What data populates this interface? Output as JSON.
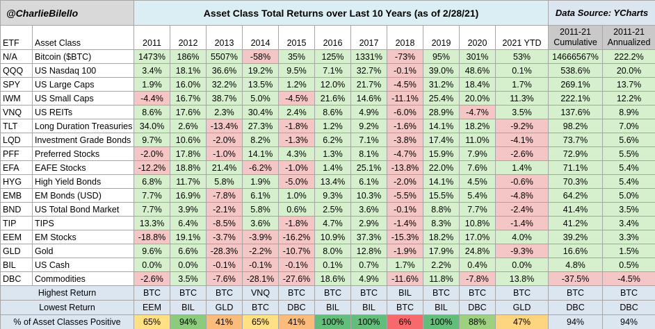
{
  "header": {
    "handle": "@CharlieBilello",
    "title": "Asset Class Total Returns over Last 10 Years (as of 2/28/21)",
    "source": "Data Source: YCharts"
  },
  "table": {
    "columns": [
      "ETF",
      "Asset Class",
      "2011",
      "2012",
      "2013",
      "2014",
      "2015",
      "2016",
      "2017",
      "2018",
      "2019",
      "2020",
      "2021 YTD",
      "2011-21 Cumulative",
      "2011-21 Annualized"
    ],
    "rows": [
      [
        "N/A",
        "Bitcoin ($BTC)",
        "1473%",
        "186%",
        "5507%",
        "-58%",
        "35%",
        "125%",
        "1331%",
        "-73%",
        "95%",
        "301%",
        "53%",
        "14666567%",
        "222.2%"
      ],
      [
        "QQQ",
        "US Nasdaq 100",
        "3.4%",
        "18.1%",
        "36.6%",
        "19.2%",
        "9.5%",
        "7.1%",
        "32.7%",
        "-0.1%",
        "39.0%",
        "48.6%",
        "0.1%",
        "538.6%",
        "20.0%"
      ],
      [
        "SPY",
        "US Large Caps",
        "1.9%",
        "16.0%",
        "32.2%",
        "13.5%",
        "1.2%",
        "12.0%",
        "21.7%",
        "-4.5%",
        "31.2%",
        "18.4%",
        "1.7%",
        "269.1%",
        "13.7%"
      ],
      [
        "IWM",
        "US Small Caps",
        "-4.4%",
        "16.7%",
        "38.7%",
        "5.0%",
        "-4.5%",
        "21.6%",
        "14.6%",
        "-11.1%",
        "25.4%",
        "20.0%",
        "11.3%",
        "222.1%",
        "12.2%"
      ],
      [
        "VNQ",
        "US REITs",
        "8.6%",
        "17.6%",
        "2.3%",
        "30.4%",
        "2.4%",
        "8.6%",
        "4.9%",
        "-6.0%",
        "28.9%",
        "-4.7%",
        "3.5%",
        "137.6%",
        "8.9%"
      ],
      [
        "TLT",
        "Long Duration Treasuries",
        "34.0%",
        "2.6%",
        "-13.4%",
        "27.3%",
        "-1.8%",
        "1.2%",
        "9.2%",
        "-1.6%",
        "14.1%",
        "18.2%",
        "-9.2%",
        "98.2%",
        "7.0%"
      ],
      [
        "LQD",
        "Investment Grade Bonds",
        "9.7%",
        "10.6%",
        "-2.0%",
        "8.2%",
        "-1.3%",
        "6.2%",
        "7.1%",
        "-3.8%",
        "17.4%",
        "11.0%",
        "-4.1%",
        "73.7%",
        "5.6%"
      ],
      [
        "PFF",
        "Preferred Stocks",
        "-2.0%",
        "17.8%",
        "-1.0%",
        "14.1%",
        "4.3%",
        "1.3%",
        "8.1%",
        "-4.7%",
        "15.9%",
        "7.9%",
        "-2.6%",
        "72.9%",
        "5.5%"
      ],
      [
        "EFA",
        "EAFE Stocks",
        "-12.2%",
        "18.8%",
        "21.4%",
        "-6.2%",
        "-1.0%",
        "1.4%",
        "25.1%",
        "-13.8%",
        "22.0%",
        "7.6%",
        "1.4%",
        "71.1%",
        "5.4%"
      ],
      [
        "HYG",
        "High Yield Bonds",
        "6.8%",
        "11.7%",
        "5.8%",
        "1.9%",
        "-5.0%",
        "13.4%",
        "6.1%",
        "-2.0%",
        "14.1%",
        "4.5%",
        "-0.6%",
        "70.3%",
        "5.4%"
      ],
      [
        "EMB",
        "EM Bonds (USD)",
        "7.7%",
        "16.9%",
        "-7.8%",
        "6.1%",
        "1.0%",
        "9.3%",
        "10.3%",
        "-5.5%",
        "15.5%",
        "5.4%",
        "-4.8%",
        "64.2%",
        "5.0%"
      ],
      [
        "BND",
        "US Total Bond Market",
        "7.7%",
        "3.9%",
        "-2.1%",
        "5.8%",
        "0.6%",
        "2.5%",
        "3.6%",
        "-0.1%",
        "8.8%",
        "7.7%",
        "-2.4%",
        "41.4%",
        "3.5%"
      ],
      [
        "TIP",
        "TIPS",
        "13.3%",
        "6.4%",
        "-8.5%",
        "3.6%",
        "-1.8%",
        "4.7%",
        "2.9%",
        "-1.4%",
        "8.3%",
        "10.8%",
        "-1.4%",
        "41.2%",
        "3.4%"
      ],
      [
        "EEM",
        "EM Stocks",
        "-18.8%",
        "19.1%",
        "-3.7%",
        "-3.9%",
        "-16.2%",
        "10.9%",
        "37.3%",
        "-15.3%",
        "18.2%",
        "17.0%",
        "4.0%",
        "39.2%",
        "3.3%"
      ],
      [
        "GLD",
        "Gold",
        "9.6%",
        "6.6%",
        "-28.3%",
        "-2.2%",
        "-10.7%",
        "8.0%",
        "12.8%",
        "-1.9%",
        "17.9%",
        "24.8%",
        "-9.3%",
        "16.6%",
        "1.5%"
      ],
      [
        "BIL",
        "US Cash",
        "0.0%",
        "0.0%",
        "-0.1%",
        "-0.1%",
        "-0.1%",
        "0.1%",
        "0.7%",
        "1.7%",
        "2.2%",
        "0.4%",
        "0.0%",
        "4.8%",
        "0.5%"
      ],
      [
        "DBC",
        "Commodities",
        "-2.6%",
        "3.5%",
        "-7.6%",
        "-28.1%",
        "-27.6%",
        "18.6%",
        "4.9%",
        "-11.6%",
        "11.8%",
        "-7.8%",
        "13.8%",
        "-37.5%",
        "-4.5%"
      ]
    ],
    "highest": {
      "label": "Highest Return",
      "values": [
        "BTC",
        "BTC",
        "BTC",
        "VNQ",
        "BTC",
        "BTC",
        "BTC",
        "BIL",
        "BTC",
        "BTC",
        "BTC",
        "BTC",
        "BTC"
      ]
    },
    "lowest": {
      "label": "Lowest Return",
      "values": [
        "EEM",
        "BIL",
        "GLD",
        "BTC",
        "DBC",
        "BIL",
        "BIL",
        "BTC",
        "BIL",
        "DBC",
        "GLD",
        "DBC",
        "DBC"
      ]
    },
    "positive": {
      "label": "% of Asset Classes Positive",
      "values": [
        "65%",
        "94%",
        "41%",
        "65%",
        "41%",
        "100%",
        "100%",
        "6%",
        "100%",
        "88%",
        "47%",
        "94%",
        "94%"
      ],
      "colors": [
        "#ffe084",
        "#8ccb7e",
        "#fbbc7b",
        "#ffe084",
        "#fbbc7b",
        "#63be7b",
        "#63be7b",
        "#f8696b",
        "#63be7b",
        "#9dd07f",
        "#fdd580",
        "#dce6f1",
        "#dce6f1"
      ]
    }
  }
}
